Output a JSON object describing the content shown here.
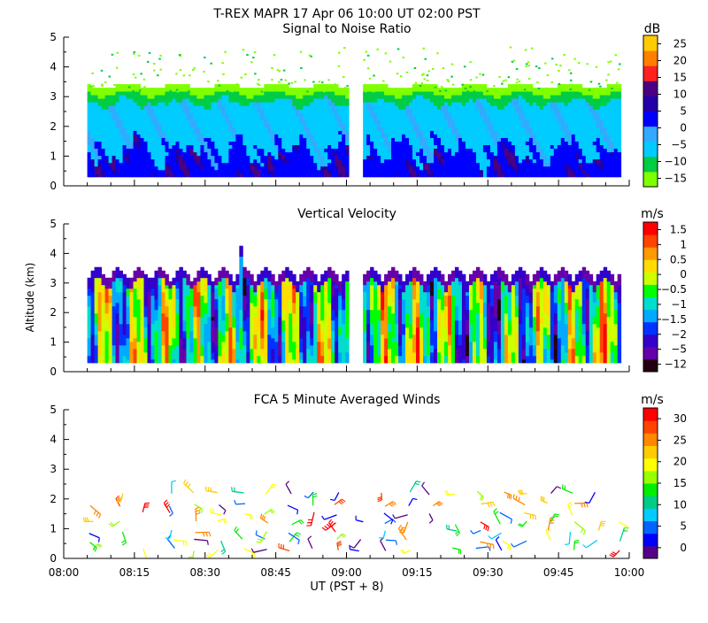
{
  "title": "T-REX   MAPR 17 Apr 06   10:00 UT   02:00   PST",
  "x_axis": {
    "label": "UT  (PST + 8)",
    "ticks": [
      "08:00",
      "08:15",
      "08:30",
      "08:45",
      "09:00",
      "09:15",
      "09:30",
      "09:45",
      "10:00"
    ],
    "range_minutes": [
      0,
      120
    ]
  },
  "y_axis": {
    "label": "Altitude (km)",
    "ticks": [
      "0",
      "1",
      "2",
      "3",
      "4",
      "5"
    ],
    "range": [
      0,
      5
    ]
  },
  "colors": {
    "snr": [
      "#80ff00",
      "#00cc44",
      "#00ccff",
      "#33aaff",
      "#0000ff",
      "#2200aa",
      "#4b0082",
      "#ff2020",
      "#ff8000",
      "#ffcc00"
    ],
    "velocity": [
      "#220011",
      "#6600aa",
      "#3300cc",
      "#0033ff",
      "#00aaff",
      "#00ddcc",
      "#00ff00",
      "#ccff00",
      "#ffdd00",
      "#ff9900",
      "#ff4400",
      "#ff0000"
    ],
    "wind": [
      "#550088",
      "#0000ff",
      "#0066ff",
      "#00ccff",
      "#00cc88",
      "#00ee00",
      "#99ff00",
      "#ffff00",
      "#ffcc00",
      "#ff8800",
      "#ff4400",
      "#ff0000"
    ]
  },
  "chart_data": [
    {
      "type": "heatmap",
      "title": "Signal to Noise Ratio",
      "units": "dB",
      "colorbar_ticks": [
        "25",
        "20",
        "15",
        "10",
        "5",
        "0",
        "−5",
        "−10",
        "−15"
      ],
      "data_gap_minutes": [
        60,
        63
      ],
      "data_extent_minutes": [
        5,
        118
      ],
      "data_altitude_km": [
        0.3,
        3.3
      ]
    },
    {
      "type": "heatmap",
      "title": "Vertical Velocity",
      "units": "m/s",
      "colorbar_ticks": [
        "1.5",
        "1",
        "0.5",
        "0",
        "−0.5",
        "−1",
        "−1.5",
        "−2",
        "−5",
        "−12"
      ],
      "data_gap_minutes": [
        60,
        63
      ],
      "data_extent_minutes": [
        5,
        118
      ],
      "data_altitude_km": [
        0.3,
        3.2
      ]
    },
    {
      "type": "scatter",
      "title": "FCA 5 Minute Averaged Winds",
      "units": "m/s",
      "colorbar_ticks": [
        "30",
        "25",
        "20",
        "15",
        "10",
        "5",
        "0"
      ],
      "barb_columns_minutes": [
        6,
        12,
        17,
        23,
        28,
        33,
        38,
        43,
        48,
        53,
        58,
        63,
        68,
        73,
        78,
        83,
        88,
        93,
        98,
        103,
        108,
        113,
        118
      ],
      "altitude_levels_km": [
        0.3,
        0.6,
        0.9,
        1.2,
        1.5,
        1.8,
        2.2
      ]
    }
  ]
}
